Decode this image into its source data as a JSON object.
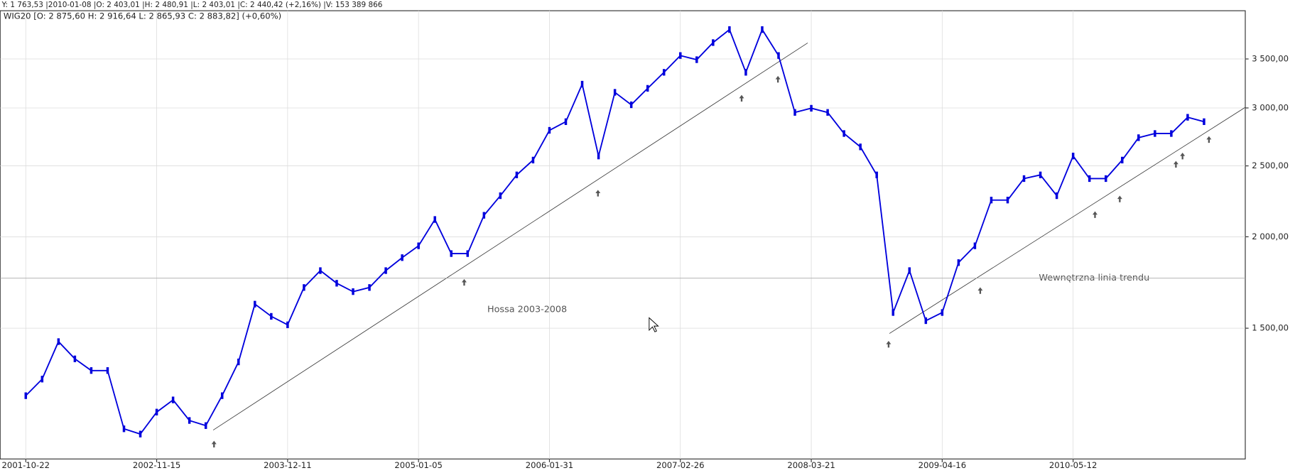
{
  "header": "Y: 1 763,53 |2010-01-08 |O: 2 403,01 |H: 2 480,91 |L: 2 403,01 |C: 2 440,42 (+2,16%) |V: 153 389 866",
  "chart_data": {
    "type": "line",
    "title": "WIG20 [O: 2 875,60  H: 2 916,64  L: 2 865,93  C: 2 883,82] (+0,60%)",
    "categories": [
      "2001-10-22",
      null,
      null,
      null,
      null,
      null,
      null,
      null,
      "2002-11-15",
      null,
      null,
      null,
      null,
      null,
      null,
      null,
      "2003-12-11",
      null,
      null,
      null,
      null,
      null,
      null,
      null,
      "2005-01-05",
      null,
      null,
      null,
      null,
      null,
      null,
      null,
      "2006-01-31",
      null,
      null,
      null,
      null,
      null,
      null,
      null,
      "2007-02-26",
      null,
      null,
      null,
      null,
      null,
      null,
      null,
      "2008-03-21",
      null,
      null,
      null,
      null,
      null,
      null,
      null,
      "2009-04-16",
      null,
      null,
      null,
      null,
      null,
      null,
      null,
      "2010-05-12",
      null,
      null,
      null,
      null,
      null,
      null,
      null,
      null
    ],
    "values": [
      1213,
      1278,
      1438,
      1362,
      1313,
      1313,
      1093,
      1075,
      1152,
      1197,
      1122,
      1104,
      1213,
      1349,
      1618,
      1557,
      1516,
      1705,
      1798,
      1728,
      1683,
      1705,
      1798,
      1873,
      1944,
      2112,
      1897,
      1897,
      2140,
      2276,
      2430,
      2546,
      2796,
      2873,
      3233,
      2579,
      3151,
      3030,
      3191,
      3356,
      3538,
      3492,
      3685,
      3839,
      3356,
      3839,
      3538,
      2958,
      2997,
      2958,
      2768,
      2654,
      2430,
      1576,
      1798,
      1536,
      1576,
      1844,
      1944,
      2245,
      2245,
      2402,
      2430,
      2276,
      2579,
      2402,
      2402,
      2546,
      2732,
      2768,
      2768,
      2913,
      2873
    ],
    "color": "#0000dd",
    "log_scale": true,
    "grid": true,
    "ylim": [
      994,
      4063
    ],
    "yticks": [
      {
        "value": 1500,
        "label": "1 500,00"
      },
      {
        "value": 2000,
        "label": "2 000,00"
      },
      {
        "value": 2500,
        "label": "2 500,00"
      },
      {
        "value": 3000,
        "label": "3 000,00"
      },
      {
        "value": 3500,
        "label": "3 500,00"
      }
    ],
    "annotations": [
      "Hossa 2003-2008",
      "Wewnętrzna linia trendu"
    ]
  }
}
